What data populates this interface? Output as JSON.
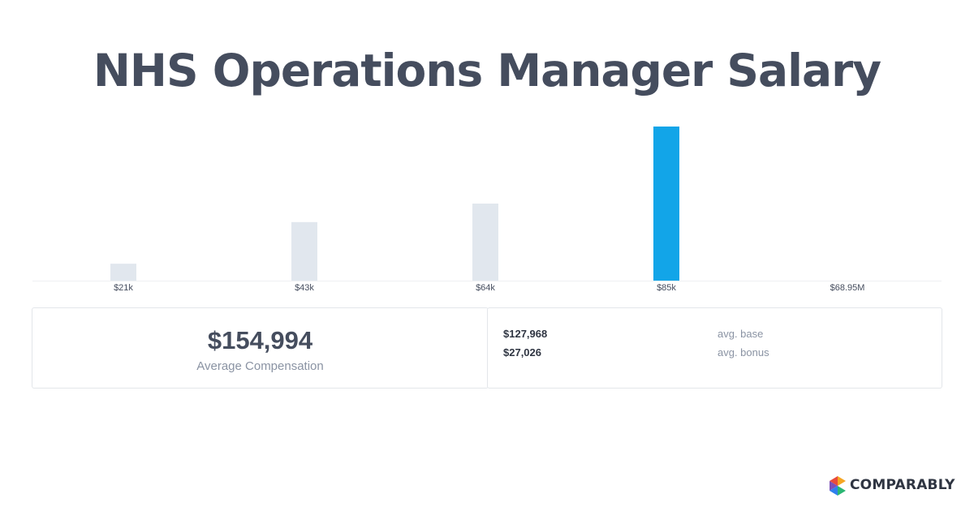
{
  "title": "NHS Operations Manager Salary",
  "chart_data": {
    "type": "bar",
    "categories": [
      "$21k",
      "$43k",
      "$64k",
      "$85k",
      "$68.95M"
    ],
    "values": [
      11,
      38,
      50,
      100,
      0
    ],
    "highlight_index": 3,
    "ylim": [
      0,
      100
    ],
    "colors": {
      "bar": "#e1e7ee",
      "highlight": "#12a5e8",
      "axis": "#eef0f3",
      "tick_text": "#454d5e"
    }
  },
  "average": {
    "value": "$154,994",
    "label": "Average Compensation"
  },
  "breakdown": [
    {
      "value": "$127,968",
      "label": "avg. base"
    },
    {
      "value": "$27,026",
      "label": "avg. bonus"
    }
  ],
  "brand": {
    "name": "COMPARABLY",
    "icon": "comparably-logo-icon",
    "colors": [
      "#f5a623",
      "#e94b3c",
      "#7b4fb8",
      "#2f80ed",
      "#2bb673"
    ]
  }
}
